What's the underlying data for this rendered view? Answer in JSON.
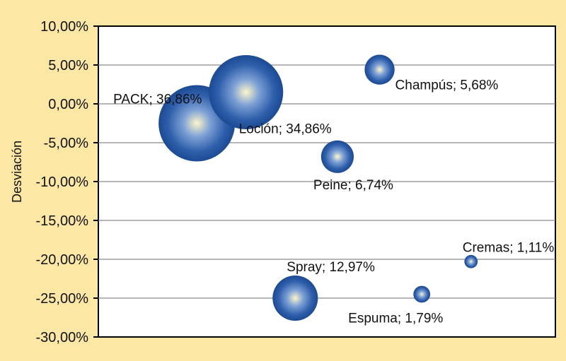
{
  "colors": {
    "page_background": "#fce8a4",
    "plot_background": "#ffffff",
    "grid": "#8a8a8a",
    "bubble_dark": "#1f4f9a",
    "bubble_mid": "#5b86c8",
    "bubble_highlight": "#fff6c8"
  },
  "chart_data": {
    "type": "bubble",
    "title": "",
    "xlabel": "",
    "ylabel": "Desviación",
    "ylim": [
      -30,
      10
    ],
    "y_ticks": [
      "10,00%",
      "5,00%",
      "0,00%",
      "-5,00%",
      "-10,00%",
      "-15,00%",
      "-20,00%",
      "-25,00%",
      "-30,00%"
    ],
    "y_tick_values": [
      10,
      5,
      0,
      -5,
      -10,
      -15,
      -20,
      -25,
      -30
    ],
    "grid": true,
    "points": [
      {
        "label": "PACK; 36,86%",
        "name": "PACK",
        "share": 36.86,
        "x": 1.4,
        "y": -2.5
      },
      {
        "label": "Loción; 34,86%",
        "name": "Loción",
        "share": 34.86,
        "x": 2.1,
        "y": 1.5
      },
      {
        "label": "Champús; 5,68%",
        "name": "Champús",
        "share": 5.68,
        "x": 4.0,
        "y": 4.4
      },
      {
        "label": "Peine; 6,74%",
        "name": "Peine",
        "share": 6.74,
        "x": 3.4,
        "y": -6.8
      },
      {
        "label": "Cremas; 1,11%",
        "name": "Cremas",
        "share": 1.11,
        "x": 5.3,
        "y": -20.3
      },
      {
        "label": "Spray; 12,97%",
        "name": "Spray",
        "share": 12.97,
        "x": 2.8,
        "y": -25.0
      },
      {
        "label": "Espuma; 1,79%",
        "name": "Espuma",
        "share": 1.79,
        "x": 4.6,
        "y": -24.5
      }
    ]
  }
}
